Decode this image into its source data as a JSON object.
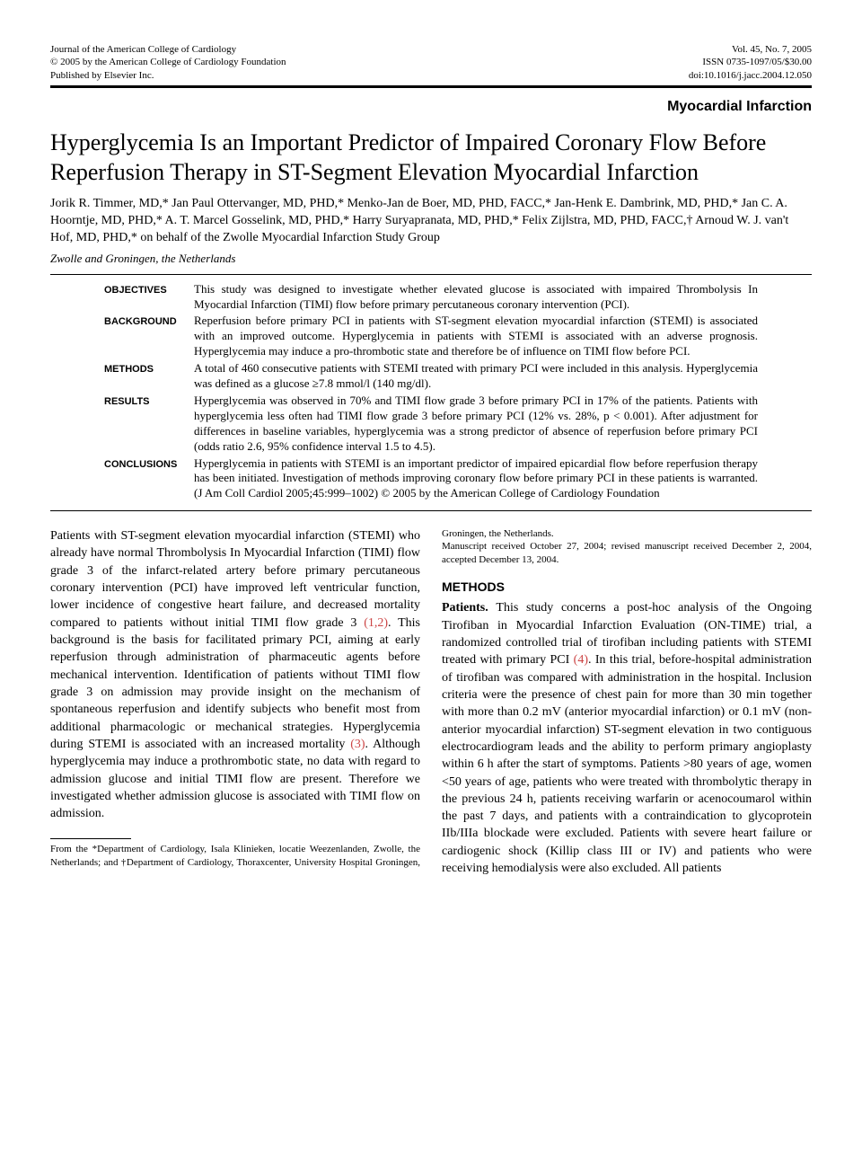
{
  "header": {
    "journal": "Journal of the American College of Cardiology",
    "copyright": "© 2005 by the American College of Cardiology Foundation",
    "publisher": "Published by Elsevier Inc.",
    "vol": "Vol. 45, No. 7, 2005",
    "issn": "ISSN 0735-1097/05/$30.00",
    "doi": "doi:10.1016/j.jacc.2004.12.050"
  },
  "category": "Myocardial Infarction",
  "title": "Hyperglycemia Is an Important Predictor of Impaired Coronary Flow Before Reperfusion Therapy in ST-Segment Elevation Myocardial Infarction",
  "authors": "Jorik R. Timmer, MD,* Jan Paul Ottervanger, MD, PHD,* Menko-Jan de Boer, MD, PHD, FACC,* Jan-Henk E. Dambrink, MD, PHD,* Jan C. A. Hoorntje, MD, PHD,* A. T. Marcel Gosselink, MD, PHD,* Harry Suryapranata, MD, PHD,* Felix Zijlstra, MD, PHD, FACC,† Arnoud W. J. van't Hof, MD, PHD,* on behalf of the Zwolle Myocardial Infarction Study Group",
  "affiliation": "Zwolle and Groningen, the Netherlands",
  "abstract": {
    "objectives": "This study was designed to investigate whether elevated glucose is associated with impaired Thrombolysis In Myocardial Infarction (TIMI) flow before primary percutaneous coronary intervention (PCI).",
    "background": "Reperfusion before primary PCI in patients with ST-segment elevation myocardial infarction (STEMI) is associated with an improved outcome. Hyperglycemia in patients with STEMI is associated with an adverse prognosis. Hyperglycemia may induce a pro-thrombotic state and therefore be of influence on TIMI flow before PCI.",
    "methods": "A total of 460 consecutive patients with STEMI treated with primary PCI were included in this analysis. Hyperglycemia was defined as a glucose ≥7.8 mmol/l (140 mg/dl).",
    "results": "Hyperglycemia was observed in 70% and TIMI flow grade 3 before primary PCI in 17% of the patients. Patients with hyperglycemia less often had TIMI flow grade 3 before primary PCI (12% vs. 28%, p < 0.001). After adjustment for differences in baseline variables, hyperglycemia was a strong predictor of absence of reperfusion before primary PCI (odds ratio 2.6, 95% confidence interval 1.5 to 4.5).",
    "conclusions": "Hyperglycemia in patients with STEMI is an important predictor of impaired epicardial flow before reperfusion therapy has been initiated. Investigation of methods improving coronary flow before primary PCI in these patients is warranted. (J Am Coll Cardiol 2005;45:999–1002) © 2005 by the American College of Cardiology Foundation"
  },
  "labels": {
    "objectives": "OBJECTIVES",
    "background": "BACKGROUND",
    "methods": "METHODS",
    "results": "RESULTS",
    "conclusions": "CONCLUSIONS"
  },
  "body": {
    "intro_a": "Patients with ST-segment elevation myocardial infarction (STEMI) who already have normal Thrombolysis In Myocardial Infarction (TIMI) flow grade 3 of the infarct-related artery before primary percutaneous coronary intervention (PCI) have improved left ventricular function, lower incidence of congestive heart failure, and decreased mortality compared to patients without initial TIMI flow grade 3 ",
    "ref1": "(1,2)",
    "intro_b": ". This background is the basis for facilitated primary PCI, aiming at early reperfusion through administration of pharmaceutic agents before mechanical intervention. Identification of patients without TIMI flow grade 3 on admission may provide insight on the mechanism of spontaneous reperfusion and identify subjects who benefit most from additional pharmacologic or mechanical strategies. Hyperglycemia during STEMI is associated with an increased mortality ",
    "ref2": "(3)",
    "intro_c": ". Although hyperglycemia may induce a prothrombotic state, no data with regard to admission glucose and initial TIMI flow are present. Therefore we investigated whether admission glucose is associated with TIMI flow on admission.",
    "methods_head": "METHODS",
    "patients_label": "Patients. ",
    "methods_a": "This study concerns a post-hoc analysis of the Ongoing Tirofiban in Myocardial Infarction Evaluation (ON-TIME) trial, a randomized controlled trial of tirofiban including patients with STEMI treated with primary PCI ",
    "ref3": "(4)",
    "methods_b": ". In this trial, before-hospital administration of tirofiban was compared with administration in the hospital. Inclusion criteria were the presence of chest pain for more than 30 min together with more than 0.2 mV (anterior myocardial infarction) or 0.1 mV (non-anterior myocardial infarction) ST-segment elevation in two contiguous electrocardiogram leads and the ability to perform primary angioplasty within 6 h after the start of symptoms. Patients >80 years of age, women <50 years of age, patients who were treated with thrombolytic therapy in the previous 24 h, patients receiving warfarin or acenocoumarol within the past 7 days, and patients with a contraindication to glycoprotein IIb/IIIa blockade were excluded. Patients with severe heart failure or cardiogenic shock (Killip class III or IV) and patients who were receiving hemodialysis were also excluded. All patients"
  },
  "footnote": {
    "affil": "From the *Department of Cardiology, Isala Klinieken, locatie Weezenlanden, Zwolle, the Netherlands; and †Department of Cardiology, Thoraxcenter, University Hospital Groningen, Groningen, the Netherlands.",
    "dates": "Manuscript received October 27, 2004; revised manuscript received December 2, 2004, accepted December 13, 2004."
  },
  "colors": {
    "ref": "#cc4444",
    "text": "#000000",
    "bg": "#ffffff"
  }
}
